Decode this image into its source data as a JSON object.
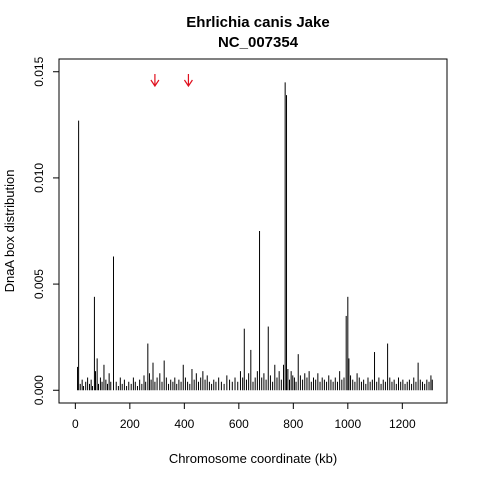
{
  "chart_data": {
    "type": "bar",
    "title": "Ehrlichia canis Jake",
    "subtitle": "NC_007354",
    "xlabel": "Chromosome coordinate (kb)",
    "ylabel": "DnaA box distribution",
    "xlim": [
      -60,
      1364
    ],
    "ylim": [
      -0.0006,
      0.0156
    ],
    "xticks": [
      0,
      200,
      400,
      600,
      800,
      1000,
      1200
    ],
    "xtick_labels": [
      "0",
      "200",
      "400",
      "600",
      "800",
      "1000",
      "1200"
    ],
    "yticks": [
      0,
      0.005,
      0.01,
      0.015
    ],
    "ytick_labels": [
      "0.000",
      "0.005",
      "0.010",
      "0.015"
    ],
    "grid": false,
    "legend": "none",
    "bar_color": "#000000",
    "arrow_color": "#e0101e",
    "arrows_x_kb": [
      292,
      415
    ],
    "series": [
      {
        "x": [
          8,
          12,
          18,
          25,
          30,
          38,
          45,
          52,
          58,
          63,
          70,
          74,
          80,
          85,
          92,
          98,
          105,
          112,
          118,
          124,
          130,
          140,
          150,
          158,
          165,
          172,
          180,
          188,
          196,
          205,
          213,
          220,
          228,
          236,
          244,
          252,
          258,
          266,
          272,
          278,
          285,
          292,
          300,
          310,
          318,
          326,
          334,
          342,
          350,
          358,
          365,
          372,
          380,
          388,
          396,
          404,
          412,
          420,
          428,
          436,
          444,
          452,
          460,
          468,
          476,
          484,
          492,
          500,
          508,
          516,
          526,
          536,
          546,
          556,
          566,
          576,
          586,
          596,
          606,
          614,
          620,
          628,
          636,
          644,
          652,
          660,
          668,
          676,
          684,
          692,
          700,
          708,
          716,
          724,
          732,
          740,
          748,
          756,
          764,
          770,
          775,
          780,
          786,
          792,
          798,
          804,
          810,
          818,
          826,
          834,
          842,
          850,
          858,
          866,
          874,
          882,
          890,
          898,
          906,
          914,
          922,
          930,
          938,
          946,
          954,
          962,
          970,
          978,
          986,
          994,
          1000,
          1004,
          1010,
          1018,
          1026,
          1034,
          1042,
          1050,
          1058,
          1066,
          1074,
          1082,
          1090,
          1098,
          1106,
          1114,
          1122,
          1130,
          1138,
          1146,
          1154,
          1162,
          1170,
          1178,
          1186,
          1194,
          1202,
          1210,
          1218,
          1226,
          1234,
          1242,
          1250,
          1258,
          1266,
          1274,
          1282,
          1290,
          1298,
          1305,
          1310
        ],
        "values": [
          0.0011,
          0.0127,
          0.0003,
          0.0005,
          0.0002,
          0.0004,
          0.0006,
          0.0003,
          0.0005,
          0.0002,
          0.0044,
          0.0009,
          0.0015,
          0.0003,
          0.0006,
          0.0004,
          0.0012,
          0.0005,
          0.0003,
          0.0008,
          0.0004,
          0.0063,
          0.0004,
          0.0002,
          0.0006,
          0.0003,
          0.0005,
          0.0002,
          0.0004,
          0.0003,
          0.0006,
          0.0004,
          0.0002,
          0.0005,
          0.0003,
          0.0007,
          0.0004,
          0.0022,
          0.0008,
          0.0005,
          0.0013,
          0.0004,
          0.0006,
          0.0008,
          0.0004,
          0.0014,
          0.0006,
          0.0003,
          0.0005,
          0.0004,
          0.0006,
          0.0003,
          0.0005,
          0.0004,
          0.0012,
          0.0006,
          0.0004,
          0.0003,
          0.001,
          0.0005,
          0.0008,
          0.0004,
          0.0006,
          0.0009,
          0.0005,
          0.0007,
          0.0004,
          0.0003,
          0.0005,
          0.0004,
          0.0006,
          0.0004,
          0.0003,
          0.0007,
          0.0005,
          0.0004,
          0.0006,
          0.0004,
          0.0009,
          0.0006,
          0.0029,
          0.0005,
          0.0008,
          0.0019,
          0.0004,
          0.0006,
          0.0009,
          0.0075,
          0.0006,
          0.0008,
          0.0005,
          0.003,
          0.0007,
          0.0004,
          0.0012,
          0.0006,
          0.0009,
          0.0005,
          0.0012,
          0.0145,
          0.0139,
          0.001,
          0.0005,
          0.0009,
          0.0007,
          0.0006,
          0.0004,
          0.0017,
          0.0007,
          0.0005,
          0.0008,
          0.0006,
          0.0009,
          0.0004,
          0.0006,
          0.0005,
          0.0008,
          0.0004,
          0.0006,
          0.0005,
          0.0004,
          0.0007,
          0.0005,
          0.0004,
          0.0006,
          0.0004,
          0.0009,
          0.0005,
          0.0006,
          0.0035,
          0.0044,
          0.0015,
          0.0007,
          0.0005,
          0.0004,
          0.0008,
          0.0006,
          0.0004,
          0.0005,
          0.0003,
          0.0006,
          0.0004,
          0.0005,
          0.0018,
          0.0004,
          0.0006,
          0.0003,
          0.0005,
          0.0004,
          0.0022,
          0.0006,
          0.0004,
          0.0005,
          0.0003,
          0.0006,
          0.0004,
          0.0005,
          0.0003,
          0.0004,
          0.0005,
          0.0003,
          0.0006,
          0.0004,
          0.0013,
          0.0005,
          0.0004,
          0.0003,
          0.0005,
          0.0004,
          0.0007,
          0.0005
        ]
      }
    ]
  }
}
